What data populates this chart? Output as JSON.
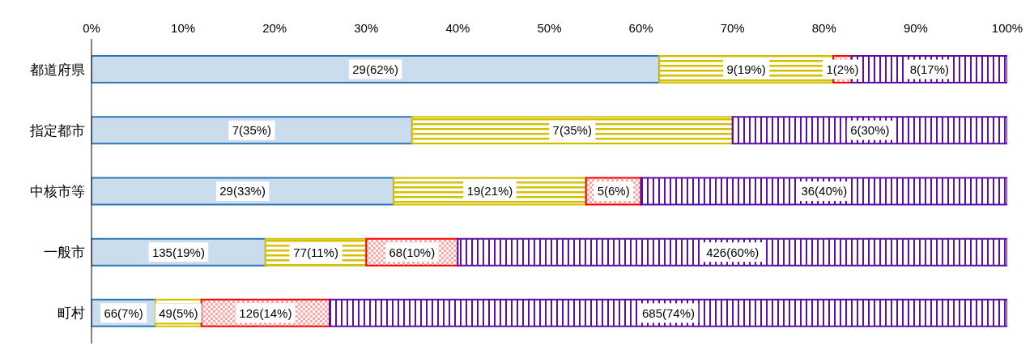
{
  "chart_data": {
    "type": "bar",
    "orientation": "horizontal",
    "stacked": true,
    "categories": [
      "都道府県",
      "指定都市",
      "中核市等",
      "一般市",
      "町村"
    ],
    "series": [
      {
        "color": "#2e75b6",
        "values": [
          62,
          35,
          33,
          19,
          7
        ],
        "value_labels": [
          "29(62%)",
          "7(35%)",
          "29(33%)",
          "135(19%)",
          "66(7%)"
        ]
      },
      {
        "color": "#d4c000",
        "values": [
          19,
          35,
          21,
          11,
          5
        ],
        "value_labels": [
          "9(19%)",
          "7(35%)",
          "19(21%)",
          "77(11%)",
          "49(5%)"
        ]
      },
      {
        "color": "#ff0000",
        "values": [
          2,
          0,
          6,
          10,
          14
        ],
        "value_labels": [
          "1(2%)",
          null,
          "5(6%)",
          "68(10%)",
          "126(14%)"
        ]
      },
      {
        "color": "#5b0fa8",
        "values": [
          17,
          30,
          40,
          60,
          74
        ],
        "value_labels": [
          "8(17%)",
          "6(30%)",
          "36(40%)",
          "426(60%)",
          "685(74%)"
        ]
      }
    ],
    "xlim": [
      0,
      100
    ],
    "xticks": [
      {
        "value": 0,
        "label": "0%"
      },
      {
        "value": 10,
        "label": "10%"
      },
      {
        "value": 20,
        "label": "20%"
      },
      {
        "value": 30,
        "label": "30%"
      },
      {
        "value": 40,
        "label": "40%"
      },
      {
        "value": 50,
        "label": "50%"
      },
      {
        "value": 60,
        "label": "60%"
      },
      {
        "value": 70,
        "label": "70%"
      },
      {
        "value": 80,
        "label": "80%"
      },
      {
        "value": 90,
        "label": "90%"
      },
      {
        "value": 100,
        "label": "100%"
      }
    ],
    "grid": false,
    "legend": false
  }
}
